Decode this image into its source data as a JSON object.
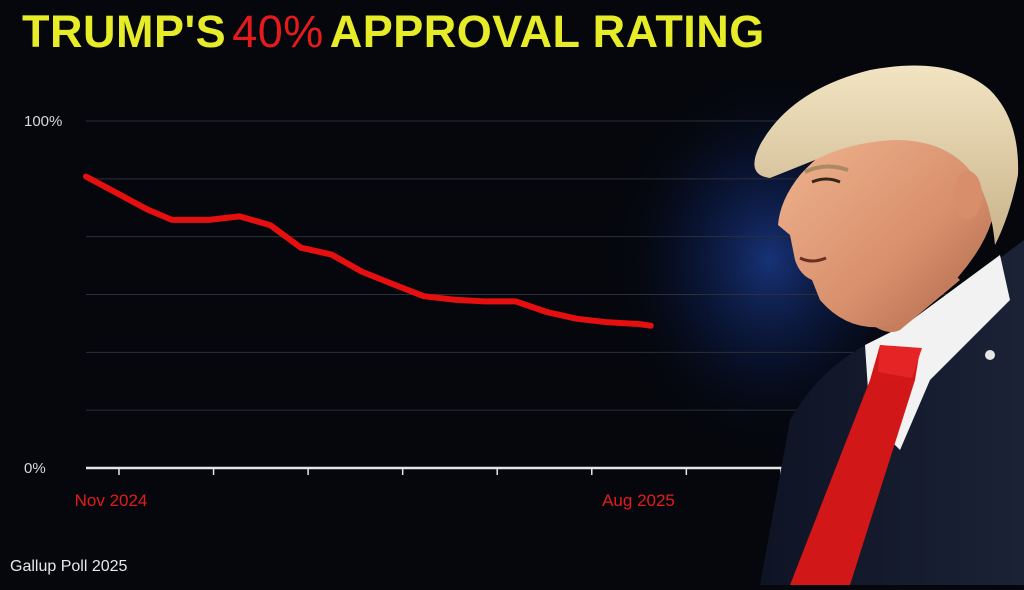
{
  "title": {
    "part1": "TRUMP'S",
    "highlight": "40%",
    "part2": "APPROVAL RATING"
  },
  "source": "Gallup Poll 2025",
  "colors": {
    "title": "#e6ec27",
    "highlight": "#e51b1b",
    "line": "#e60f0f",
    "axis_label": "#e51b1b",
    "background": "#05070d"
  },
  "chart_data": {
    "type": "line",
    "title": "TRUMP'S 40% APPROVAL RATING",
    "xlabel": "",
    "ylabel": "",
    "ylim": [
      0,
      100
    ],
    "ytick_labels": [
      "0%",
      "100%"
    ],
    "xtick_labels": [
      {
        "pos": 0,
        "label": "Nov 2024"
      },
      {
        "pos": 9,
        "label": "Aug 2025"
      }
    ],
    "xlim": [
      0,
      14.4
    ],
    "grid": true,
    "series": [
      {
        "x": [
          0,
          1,
          1.4,
          2,
          2.5,
          3,
          3.5,
          4,
          4.5,
          5,
          5.5,
          6,
          6.5,
          7,
          7.5,
          8,
          8.5,
          9,
          9.2
        ],
        "values": [
          84,
          74.5,
          71.5,
          71.5,
          72.5,
          70,
          63.5,
          61.5,
          56.5,
          53,
          49.5,
          48.5,
          48,
          48,
          45,
          43,
          42,
          41.5,
          41
        ]
      }
    ]
  }
}
